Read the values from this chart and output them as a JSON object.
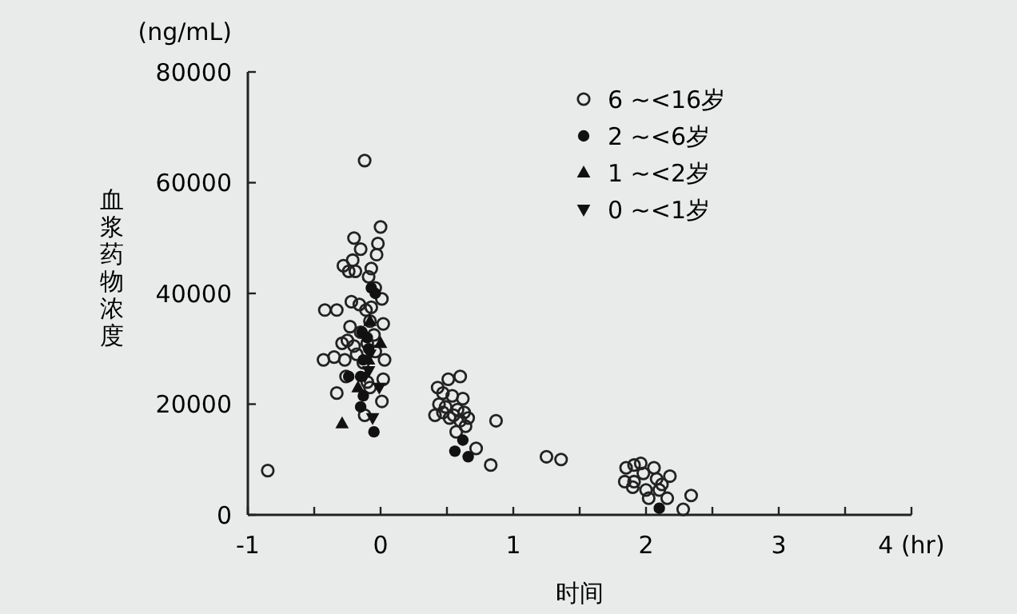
{
  "chart_data": {
    "type": "scatter",
    "xlabel": "时间",
    "ylabel": "血浆药物浓度",
    "annotations": [
      "(ng/mL)"
    ],
    "xlim": [
      -1,
      4
    ],
    "xticks": [
      -1,
      {
        "value": -0.5,
        "label": null
      },
      0,
      {
        "value": 0.5,
        "label": null
      },
      1,
      {
        "value": 1.5,
        "label": null
      },
      2,
      {
        "value": 2.5,
        "label": null
      },
      3,
      {
        "value": 3.5,
        "label": null
      },
      {
        "value": 4,
        "label": "4 (hr)"
      }
    ],
    "ylim": [
      0,
      80000
    ],
    "yticks": [
      0,
      20000,
      40000,
      60000,
      80000
    ],
    "grid": false,
    "legend": "top right",
    "series": [
      {
        "name": "6 ~<16岁",
        "color": "#222222",
        "marker": "circle-open",
        "x": [
          -0.85,
          -0.12,
          0.0,
          -0.2,
          -0.02,
          -0.15,
          -0.03,
          -0.21,
          -0.28,
          -0.19,
          -0.07,
          -0.24,
          -0.09,
          -0.04,
          0.01,
          -0.22,
          -0.16,
          -0.07,
          -0.11,
          -0.42,
          -0.33,
          -0.08,
          0.02,
          -0.23,
          -0.15,
          -0.05,
          -0.25,
          -0.29,
          -0.2,
          -0.1,
          -0.43,
          -0.35,
          -0.27,
          -0.13,
          0.03,
          -0.18,
          -0.04,
          -0.26,
          -0.1,
          0.02,
          -0.08,
          -0.33,
          0.01,
          -0.12,
          0.6,
          0.51,
          0.43,
          0.47,
          0.54,
          0.62,
          0.44,
          0.49,
          0.58,
          0.63,
          0.41,
          0.47,
          0.52,
          0.6,
          0.66,
          0.64,
          0.55,
          0.87,
          0.57,
          0.72,
          0.83,
          1.25,
          1.36,
          1.84,
          1.85,
          1.91,
          1.96,
          2.06,
          1.98,
          2.08,
          2.18,
          1.91,
          2.0,
          2.1,
          2.02,
          2.16,
          2.28,
          2.34,
          1.9,
          2.12
        ],
        "values": [
          8000,
          64000,
          52000,
          50000,
          49000,
          48000,
          47000,
          46000,
          45000,
          44000,
          44500,
          44000,
          43000,
          41000,
          39000,
          38500,
          38000,
          37500,
          37000,
          37000,
          37000,
          35000,
          34500,
          34000,
          33000,
          32500,
          31500,
          31000,
          30500,
          31000,
          28000,
          28500,
          28000,
          27500,
          28000,
          29000,
          29500,
          25000,
          24000,
          24500,
          23000,
          22000,
          20500,
          18000,
          25000,
          24500,
          23000,
          22000,
          21500,
          21000,
          20000,
          19500,
          19000,
          18500,
          18000,
          18500,
          17500,
          17000,
          17500,
          16000,
          18000,
          17000,
          15000,
          12000,
          9000,
          10500,
          10000,
          6000,
          8500,
          9000,
          9300,
          8500,
          7500,
          6500,
          7000,
          6000,
          4500,
          4500,
          3000,
          3000,
          1000,
          3500,
          5000,
          5500
        ]
      },
      {
        "name": "2 ~<6岁",
        "color": "#111111",
        "marker": "circle",
        "x": [
          -0.07,
          -0.04,
          -0.14,
          -0.1,
          -0.09,
          -0.13,
          -0.15,
          -0.24,
          -0.13,
          -0.15,
          -0.05,
          0.62,
          0.56,
          0.66,
          2.1
        ],
        "values": [
          41000,
          40000,
          33000,
          32000,
          30000,
          28000,
          25000,
          25000,
          21500,
          19500,
          15000,
          13500,
          11500,
          10500,
          1200
        ]
      },
      {
        "name": "1 ~<2岁",
        "color": "#111111",
        "marker": "triangle",
        "x": [
          -0.08,
          0.0,
          -0.09,
          -0.17,
          -0.29
        ],
        "values": [
          35000,
          31000,
          28000,
          23000,
          16500
        ]
      },
      {
        "name": "0 ~<1岁",
        "color": "#111111",
        "marker": "triangle-down",
        "x": [
          -0.09,
          -0.01,
          -0.08,
          -0.06,
          -0.12
        ],
        "values": [
          26000,
          23000,
          29000,
          17500,
          25000
        ]
      }
    ]
  }
}
